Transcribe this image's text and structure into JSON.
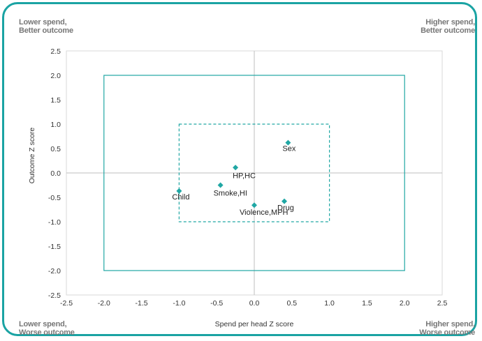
{
  "quadrants": {
    "top_left": [
      "Lower spend,",
      "Better outcome"
    ],
    "top_right": [
      "Higher spend,",
      "Better outcome"
    ],
    "bottom_left": [
      "Lower spend,",
      "Worse outcome"
    ],
    "bottom_right": [
      "Higher spend,",
      "Worse outcome"
    ]
  },
  "chart_data": {
    "type": "scatter",
    "xlabel": "Spend per head Z score",
    "ylabel": "Outcome Z score",
    "xlim": [
      -2.5,
      2.5
    ],
    "ylim": [
      -2.5,
      2.5
    ],
    "xticks": [
      "-2.5",
      "-2.0",
      "-1.5",
      "-1.0",
      "-0.5",
      "0.0",
      "0.5",
      "1.0",
      "1.5",
      "2.0",
      "2.5"
    ],
    "yticks": [
      "2.5",
      "2.0",
      "1.5",
      "1.0",
      "0.5",
      "0.0",
      "-0.5",
      "-1.0",
      "-1.5",
      "-2.0",
      "-2.5"
    ],
    "grid": false,
    "reference_lines": {
      "x": 0,
      "y": 0
    },
    "boxes": [
      {
        "style": "solid",
        "x": [
          -2,
          2
        ],
        "y": [
          -2,
          2
        ]
      },
      {
        "style": "dashed",
        "x": [
          -1,
          1
        ],
        "y": [
          -1,
          1
        ]
      }
    ],
    "points": [
      {
        "label": "Sex",
        "x": 0.45,
        "y": 0.62
      },
      {
        "label": "HP,HC",
        "x": -0.25,
        "y": 0.11
      },
      {
        "label": "Smoke,HI",
        "x": -0.45,
        "y": -0.25
      },
      {
        "label": "Child",
        "x": -1.0,
        "y": -0.37
      },
      {
        "label": "Drug",
        "x": 0.4,
        "y": -0.58
      },
      {
        "label": "Violence,MPH",
        "x": 0.0,
        "y": -0.66
      }
    ],
    "colors": {
      "marker": "#20a7a4",
      "box": "#20a7a4",
      "frame": "#1aa3a3",
      "axis": "#bfbfbf"
    }
  }
}
